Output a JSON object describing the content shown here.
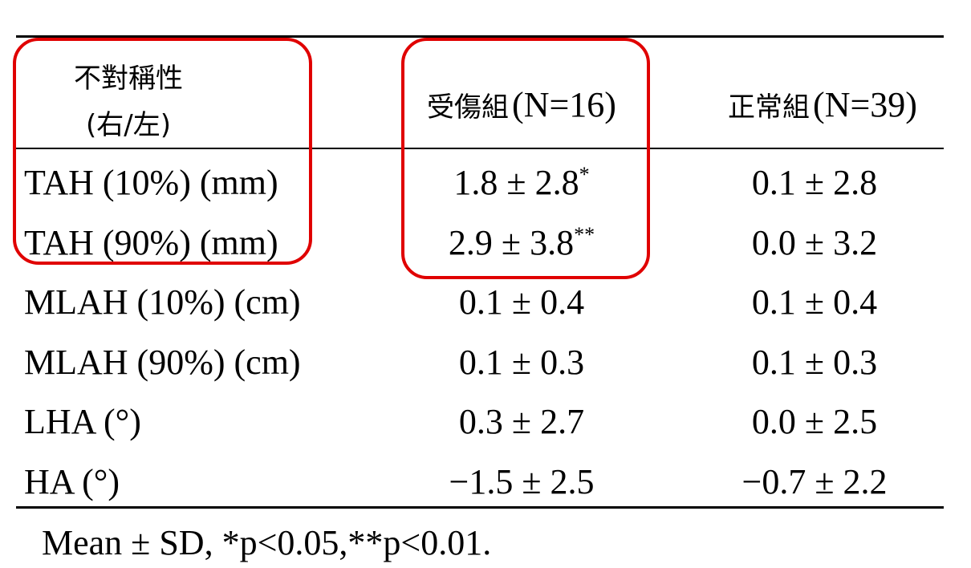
{
  "table": {
    "header": {
      "label": [
        "不對稱性",
        "(右/左)"
      ],
      "injured": {
        "name": "受傷組",
        "n": "(N=16)"
      },
      "normal": {
        "name": "正常組",
        "n": "(N=39)"
      }
    },
    "rows": [
      {
        "label": "TAH (10%) (mm)",
        "injured": "1.8 ± 2.8",
        "injured_sup": "*",
        "normal": "0.1 ± 2.8"
      },
      {
        "label": "TAH (90%) (mm)",
        "injured": "2.9 ± 3.8",
        "injured_sup": "**",
        "normal": "0.0 ± 3.2"
      },
      {
        "label": "MLAH (10%) (cm)",
        "injured": "0.1 ± 0.4",
        "normal": "0.1 ± 0.4"
      },
      {
        "label": "MLAH (90%) (cm)",
        "injured": "0.1 ± 0.3",
        "normal": "0.1 ± 0.3"
      },
      {
        "label": "LHA (°)",
        "injured": "0.3 ± 2.7",
        "normal": "0.0 ± 2.5"
      },
      {
        "label": "HA (°)",
        "injured": "−1.5 ± 2.5",
        "normal": "−0.7 ± 2.2"
      }
    ],
    "footnote": "Mean ± SD, *p<0.05,**p<0.01."
  }
}
